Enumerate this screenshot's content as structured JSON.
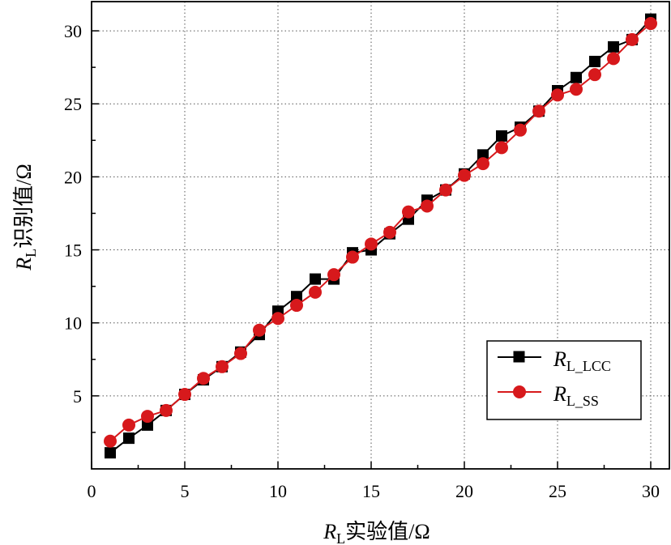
{
  "chart_data": {
    "type": "line",
    "title": "",
    "xlabel": {
      "symbol": "R",
      "subscript": "L",
      "text": "实验值/Ω"
    },
    "ylabel": {
      "symbol": "R",
      "subscript": "L",
      "text": "识别值/Ω"
    },
    "xlim": [
      0,
      31
    ],
    "ylim": [
      0,
      32
    ],
    "x_ticks": [
      0,
      5,
      10,
      15,
      20,
      25,
      30
    ],
    "y_ticks": [
      5,
      10,
      15,
      20,
      25,
      30
    ],
    "grid": true,
    "legend_position": "bottom-right",
    "series": [
      {
        "name": {
          "symbol": "R",
          "subscript": "L_LCC"
        },
        "color": "#000000",
        "marker": "square",
        "x": [
          1,
          2,
          3,
          4,
          5,
          6,
          7,
          8,
          9,
          10,
          11,
          12,
          13,
          14,
          15,
          16,
          17,
          18,
          19,
          20,
          21,
          22,
          23,
          24,
          25,
          26,
          27,
          28,
          29,
          30
        ],
        "y": [
          1.1,
          2.1,
          3.0,
          4.0,
          5.1,
          6.1,
          7.0,
          8.0,
          9.2,
          10.8,
          11.8,
          13.0,
          13.0,
          14.8,
          15.0,
          16.1,
          17.1,
          18.4,
          19.1,
          20.2,
          21.5,
          22.8,
          23.4,
          24.5,
          25.9,
          26.8,
          27.9,
          28.9,
          29.4,
          30.8
        ]
      },
      {
        "name": {
          "symbol": "R",
          "subscript": "L_SS"
        },
        "color": "#d7191c",
        "marker": "circle",
        "x": [
          1,
          2,
          3,
          4,
          5,
          6,
          7,
          8,
          9,
          10,
          11,
          12,
          13,
          14,
          15,
          16,
          17,
          18,
          19,
          20,
          21,
          22,
          23,
          24,
          25,
          26,
          27,
          28,
          29,
          30
        ],
        "y": [
          1.9,
          3.0,
          3.6,
          4.0,
          5.1,
          6.2,
          7.0,
          7.9,
          9.5,
          10.3,
          11.2,
          12.1,
          13.3,
          14.5,
          15.4,
          16.2,
          17.6,
          18.0,
          19.1,
          20.1,
          20.9,
          22.0,
          23.2,
          24.5,
          25.6,
          26.0,
          27.0,
          28.1,
          29.4,
          30.5
        ]
      }
    ]
  }
}
